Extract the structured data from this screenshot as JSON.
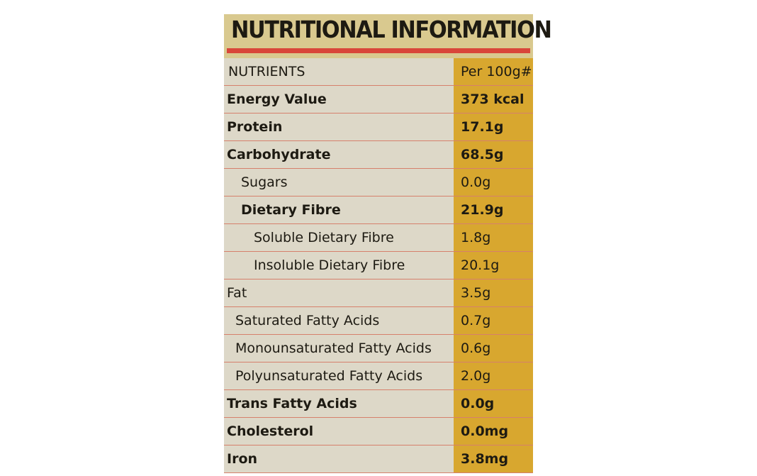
{
  "header": {
    "title": "NUTRITIONAL INFORMATION"
  },
  "table": {
    "columns": [
      "NUTRIENTS",
      "Per 100g#"
    ],
    "rows": [
      [
        "Energy Value",
        "373 kcal"
      ],
      [
        "Protein",
        "17.1g"
      ],
      [
        "Carbohydrate",
        "68.5g"
      ],
      [
        "Sugars",
        "0.0g"
      ],
      [
        "Dietary Fibre",
        "21.9g"
      ],
      [
        "Soluble Dietary Fibre",
        "1.8g"
      ],
      [
        "Insoluble Dietary Fibre",
        "20.1g"
      ],
      [
        "Fat",
        "3.5g"
      ],
      [
        "Saturated Fatty Acids",
        "0.7g"
      ],
      [
        "Monounsaturated Fatty Acids",
        "0.6g"
      ],
      [
        "Polyunsaturated Fatty Acids",
        "2.0g"
      ],
      [
        "Trans Fatty Acids",
        "0.0g"
      ],
      [
        "Cholesterol",
        "0.0mg"
      ],
      [
        "Iron",
        "3.8mg"
      ]
    ]
  }
}
